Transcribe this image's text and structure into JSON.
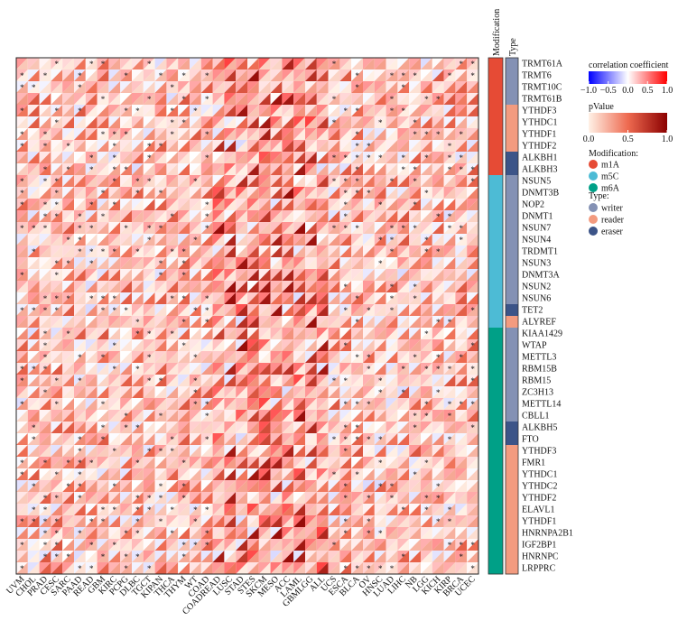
{
  "chart_data": {
    "type": "heatmap",
    "title": "",
    "rows": [
      "TRMT61A",
      "TRMT6",
      "TRMT10C",
      "TRMT61B",
      "YTHDF3",
      "YTHDC1",
      "YTHDF1",
      "YTHDF2",
      "ALKBH1",
      "ALKBH3",
      "NSUN5",
      "DNMT3B",
      "NOP2",
      "DNMT1",
      "NSUN7",
      "NSUN4",
      "TRDMT1",
      "NSUN3",
      "DNMT3A",
      "NSUN2",
      "NSUN6",
      "TET2",
      "ALYREF",
      "KIAA1429",
      "WTAP",
      "METTL3",
      "RBM15B",
      "RBM15",
      "ZC3H13",
      "METTL14",
      "CBLL1",
      "ALKBH5",
      "FTO",
      "YTHDF3",
      "FMR1",
      "YTHDC1",
      "YTHDC2",
      "YTHDF2",
      "ELAVL1",
      "YTHDF1",
      "HNRNPA2B1",
      "IGF2BP1",
      "HNRNPC",
      "LRPPRC"
    ],
    "columns": [
      "UVM",
      "CHOL",
      "PRAD",
      "CESC",
      "SARC",
      "PAAD",
      "READ",
      "GBM",
      "KIRC",
      "PCPG",
      "DLBC",
      "TGCT",
      "KIPAN",
      "THCA",
      "THYM",
      "WT",
      "COAD",
      "COADREAD",
      "LUSC",
      "STAD",
      "STES",
      "SKCM",
      "MESO",
      "ACC",
      "LAML",
      "GBMLGG",
      "ALL",
      "UCS",
      "ESCA",
      "BLCA",
      "OV",
      "HNSC",
      "LUAD",
      "LIHC",
      "NB",
      "LGG",
      "KICH",
      "KIRP",
      "BRCA",
      "UCEC"
    ],
    "row_modification": [
      "m1A",
      "m1A",
      "m1A",
      "m1A",
      "m1A",
      "m1A",
      "m1A",
      "m1A",
      "m1A",
      "m1A",
      "m5C",
      "m5C",
      "m5C",
      "m5C",
      "m5C",
      "m5C",
      "m5C",
      "m5C",
      "m5C",
      "m5C",
      "m5C",
      "m5C",
      "m5C",
      "m6A",
      "m6A",
      "m6A",
      "m6A",
      "m6A",
      "m6A",
      "m6A",
      "m6A",
      "m6A",
      "m6A",
      "m6A",
      "m6A",
      "m6A",
      "m6A",
      "m6A",
      "m6A",
      "m6A",
      "m6A",
      "m6A",
      "m6A",
      "m6A"
    ],
    "row_type": [
      "writer",
      "writer",
      "writer",
      "writer",
      "reader",
      "reader",
      "reader",
      "reader",
      "eraser",
      "eraser",
      "writer",
      "writer",
      "writer",
      "writer",
      "writer",
      "writer",
      "writer",
      "writer",
      "writer",
      "writer",
      "writer",
      "eraser",
      "reader",
      "writer",
      "writer",
      "writer",
      "writer",
      "writer",
      "writer",
      "writer",
      "writer",
      "eraser",
      "eraser",
      "reader",
      "reader",
      "reader",
      "reader",
      "reader",
      "reader",
      "reader",
      "reader",
      "reader",
      "reader",
      "reader"
    ],
    "annotation_titles": {
      "modification": "Modification",
      "type": "Type"
    },
    "legend": {
      "correlation": {
        "title": "correlation coefficient",
        "ticks": [
          -1.0,
          -0.5,
          0,
          0.5,
          1
        ],
        "tick_labels": [
          "−1.0",
          "−0.5",
          "0.0",
          "0.5",
          "1.0"
        ],
        "range": [
          -1,
          1
        ],
        "colors": [
          "#0000ff",
          "#ffffff",
          "#ff0000"
        ]
      },
      "pvalue": {
        "title": "pValue",
        "ticks": [
          0,
          0.5,
          1
        ],
        "tick_labels": [
          "0.0",
          "0.5",
          "1.0"
        ],
        "range": [
          0,
          1
        ],
        "colors": [
          "#fff1e6",
          "#ee6a50",
          "#8b0000"
        ]
      },
      "modification": {
        "title": "Modification:",
        "items": [
          {
            "label": "m1A",
            "color": "#e64b35"
          },
          {
            "label": "m5C",
            "color": "#4dbbd5"
          },
          {
            "label": "m6A",
            "color": "#00a087"
          }
        ]
      },
      "type": {
        "title": "Type:",
        "items": [
          {
            "label": "writer",
            "color": "#8491b4"
          },
          {
            "label": "reader",
            "color": "#f39b7f"
          },
          {
            "label": "eraser",
            "color": "#3c5488"
          }
        ]
      }
    },
    "significance_marker": "*"
  }
}
